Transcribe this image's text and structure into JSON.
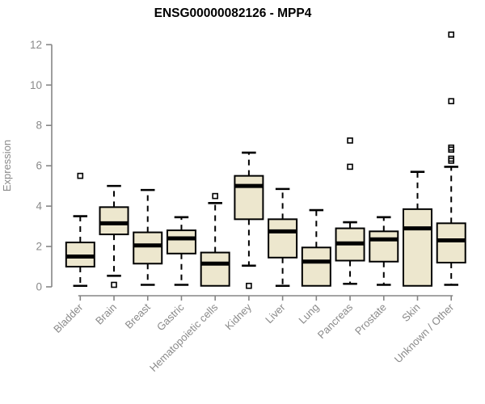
{
  "title": "ENSG00000082126 - MPP4",
  "colors": {
    "background": "#ffffff",
    "box_fill": "#ede7ce",
    "box_stroke": "#000000",
    "median": "#000000",
    "whisker": "#000000",
    "outlier": "#000000",
    "axis": "#858585",
    "tick_text": "#8a8a8a",
    "title_text": "#000000"
  },
  "chart_data": {
    "type": "boxplot",
    "title": "ENSG00000082126 - MPP4",
    "xlabel": "",
    "ylabel": "Expression",
    "ylim": [
      0,
      12.6
    ],
    "yticks": [
      0,
      2,
      4,
      6,
      8,
      10,
      12
    ],
    "grid": false,
    "legend": false,
    "categories": [
      "Bladder",
      "Brain",
      "Breast",
      "Gastric",
      "Hematopoietic cells",
      "Kidney",
      "Liver",
      "Lung",
      "Pancreas",
      "Prostate",
      "Skin",
      "Unknown / Other"
    ],
    "series": [
      {
        "name": "Bladder",
        "whisker_low": 0.05,
        "q1": 1.0,
        "median": 1.5,
        "q3": 2.2,
        "whisker_high": 3.5,
        "outliers": [
          5.5
        ]
      },
      {
        "name": "Brain",
        "whisker_low": 0.55,
        "q1": 2.6,
        "median": 3.15,
        "q3": 3.95,
        "whisker_high": 5.0,
        "outliers": [
          0.1
        ]
      },
      {
        "name": "Breast",
        "whisker_low": 0.1,
        "q1": 1.15,
        "median": 2.05,
        "q3": 2.7,
        "whisker_high": 4.8,
        "outliers": []
      },
      {
        "name": "Gastric",
        "whisker_low": 0.1,
        "q1": 1.65,
        "median": 2.4,
        "q3": 2.8,
        "whisker_high": 3.45,
        "outliers": []
      },
      {
        "name": "Hematopoietic cells",
        "whisker_low": 0.05,
        "q1": 0.05,
        "median": 1.15,
        "q3": 1.7,
        "whisker_high": 4.15,
        "outliers": [
          4.5
        ]
      },
      {
        "name": "Kidney",
        "whisker_low": 1.05,
        "q1": 3.35,
        "median": 5.0,
        "q3": 5.5,
        "whisker_high": 6.65,
        "outliers": [
          0.05
        ]
      },
      {
        "name": "Liver",
        "whisker_low": 0.05,
        "q1": 1.45,
        "median": 2.75,
        "q3": 3.35,
        "whisker_high": 4.85,
        "outliers": []
      },
      {
        "name": "Lung",
        "whisker_low": 0.05,
        "q1": 0.05,
        "median": 1.25,
        "q3": 1.95,
        "whisker_high": 3.8,
        "outliers": []
      },
      {
        "name": "Pancreas",
        "whisker_low": 0.15,
        "q1": 1.3,
        "median": 2.15,
        "q3": 2.9,
        "whisker_high": 3.2,
        "outliers": [
          5.95,
          7.25
        ]
      },
      {
        "name": "Prostate",
        "whisker_low": 0.1,
        "q1": 1.25,
        "median": 2.35,
        "q3": 2.75,
        "whisker_high": 3.45,
        "outliers": []
      },
      {
        "name": "Skin",
        "whisker_low": 0.05,
        "q1": 0.05,
        "median": 2.9,
        "q3": 3.85,
        "whisker_high": 5.7,
        "outliers": []
      },
      {
        "name": "Unknown / Other",
        "whisker_low": 0.1,
        "q1": 1.2,
        "median": 2.3,
        "q3": 3.15,
        "whisker_high": 5.95,
        "outliers": [
          6.25,
          6.35,
          6.8,
          6.9,
          9.2,
          12.5
        ]
      }
    ]
  }
}
